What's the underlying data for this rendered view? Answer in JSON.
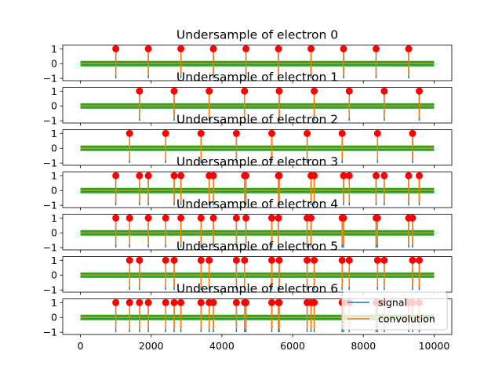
{
  "chart_data": {
    "type": "line",
    "x_ticks": [
      0,
      2000,
      4000,
      6000,
      8000,
      10000
    ],
    "y_ticks": [
      -1,
      0,
      1
    ],
    "xlim": [
      -500,
      10500
    ],
    "ylim": [
      -1.15,
      1.25
    ],
    "signal_range": [
      0,
      10000
    ],
    "legend": {
      "position": "lower-right",
      "entries": [
        {
          "name": "signal",
          "color": "#1f77b4"
        },
        {
          "name": "convolution",
          "color": "#ff7f0e"
        }
      ]
    },
    "colors": {
      "signal": "#1f77b4",
      "convolution": "#ff7f0e",
      "baseline": "#2ca02c",
      "markers": "#ff0000"
    },
    "subplots": [
      {
        "title": "Undersample of electron 0",
        "spikes": [
          1000,
          1920,
          2840,
          3760,
          4680,
          5600,
          6520,
          7440,
          8360,
          9280
        ]
      },
      {
        "title": "Undersample of electron 1",
        "spikes": [
          1670,
          2650,
          3640,
          4640,
          5620,
          6610,
          7600,
          8590,
          9580
        ]
      },
      {
        "title": "Undersample of electron 2",
        "spikes": [
          1390,
          2410,
          3410,
          4410,
          5410,
          6410,
          7400,
          8400,
          9390
        ]
      },
      {
        "title": "Undersample of electron 3",
        "spikes": [
          1000,
          1670,
          1920,
          2650,
          2840,
          3640,
          3760,
          4640,
          4680,
          5600,
          5620,
          6520,
          6610,
          7440,
          7600,
          8360,
          8590,
          9280,
          9580
        ]
      },
      {
        "title": "Undersample of electron 4",
        "spikes": [
          1000,
          1390,
          1920,
          2410,
          2840,
          3410,
          3760,
          4410,
          4680,
          5410,
          5600,
          6410,
          6520,
          7400,
          7440,
          8360,
          8400,
          9280,
          9390
        ]
      },
      {
        "title": "Undersample of electron 5",
        "spikes": [
          1390,
          1670,
          2410,
          2650,
          3410,
          3640,
          4410,
          4640,
          5410,
          5620,
          6410,
          6610,
          7400,
          7600,
          8400,
          8590,
          9390,
          9580
        ]
      },
      {
        "title": "Undersample of electron 6",
        "spikes": [
          1000,
          1390,
          1670,
          1920,
          2410,
          2650,
          2840,
          3410,
          3640,
          3760,
          4410,
          4640,
          4680,
          5410,
          5600,
          5620,
          6410,
          6520,
          6610,
          7400,
          7440,
          7600,
          8360,
          8400,
          8590,
          9280,
          9390,
          9580
        ]
      }
    ]
  }
}
